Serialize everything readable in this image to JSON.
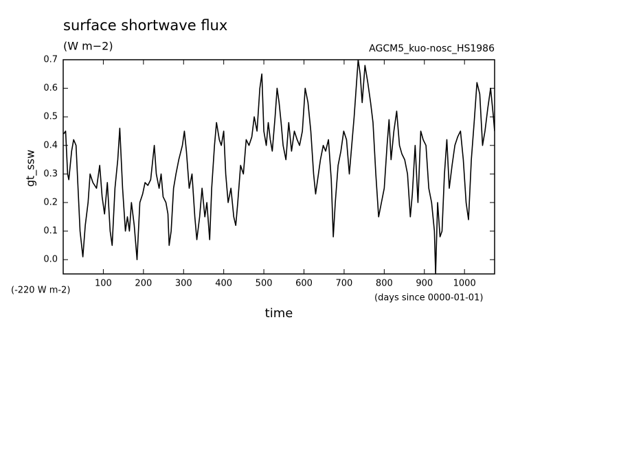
{
  "chart_data": {
    "type": "line",
    "title": "surface shortwave flux",
    "subtitle": "(W m−2)",
    "annotation": "AGCM5_kuo-nosc_HS1986",
    "offset_note": "(-220 W m-2)",
    "x_units": "(days since 0000-01-01)",
    "x_label": "time",
    "y_label": "gt_ssw",
    "xlim": [
      0,
      1075
    ],
    "xticks": [
      100,
      200,
      300,
      400,
      500,
      600,
      700,
      800,
      900,
      1000
    ],
    "ylim": [
      -0.05,
      0.7
    ],
    "yticks": [
      {
        "value": 0,
        "label": "0.0"
      },
      0.1,
      0.2,
      0.3,
      0.4,
      0.5,
      0.6,
      0.7
    ],
    "grid": false,
    "color": "#000000",
    "x": [
      1,
      6,
      11,
      14,
      21,
      26,
      32,
      37,
      42,
      49,
      55,
      62,
      67,
      74,
      83,
      91,
      97,
      103,
      110,
      117,
      122,
      129,
      136,
      141,
      148,
      155,
      160,
      165,
      170,
      177,
      184,
      191,
      198,
      204,
      211,
      218,
      227,
      232,
      239,
      244,
      249,
      256,
      261,
      264,
      269,
      275,
      281,
      288,
      297,
      302,
      307,
      314,
      321,
      328,
      333,
      340,
      346,
      353,
      358,
      365,
      370,
      377,
      382,
      389,
      394,
      400,
      405,
      411,
      418,
      425,
      430,
      435,
      442,
      449,
      456,
      463,
      470,
      476,
      483,
      490,
      495,
      500,
      506,
      511,
      516,
      521,
      528,
      533,
      538,
      543,
      548,
      555,
      562,
      569,
      576,
      583,
      589,
      596,
      603,
      610,
      617,
      624,
      629,
      634,
      641,
      648,
      654,
      661,
      668,
      673,
      678,
      685,
      692,
      699,
      706,
      713,
      719,
      725,
      730,
      735,
      740,
      745,
      752,
      759,
      766,
      772,
      779,
      786,
      793,
      800,
      807,
      812,
      817,
      824,
      831,
      838,
      844,
      851,
      858,
      865,
      870,
      877,
      884,
      891,
      897,
      904,
      911,
      918,
      925,
      928,
      933,
      939,
      944,
      950,
      956,
      962,
      969,
      976,
      983,
      990,
      997,
      1004,
      1010,
      1017,
      1024,
      1031,
      1038,
      1045,
      1051,
      1058,
      1065,
      1072,
      1075
    ],
    "values": [
      0.44,
      0.45,
      0.3,
      0.28,
      0.38,
      0.42,
      0.4,
      0.25,
      0.1,
      0.01,
      0.12,
      0.2,
      0.3,
      0.27,
      0.25,
      0.33,
      0.22,
      0.16,
      0.27,
      0.1,
      0.05,
      0.25,
      0.35,
      0.46,
      0.25,
      0.1,
      0.15,
      0.1,
      0.2,
      0.12,
      0.0,
      0.2,
      0.23,
      0.27,
      0.26,
      0.28,
      0.4,
      0.3,
      0.25,
      0.3,
      0.22,
      0.2,
      0.16,
      0.05,
      0.1,
      0.25,
      0.3,
      0.35,
      0.4,
      0.45,
      0.38,
      0.25,
      0.3,
      0.15,
      0.07,
      0.15,
      0.25,
      0.15,
      0.2,
      0.07,
      0.25,
      0.4,
      0.48,
      0.42,
      0.4,
      0.45,
      0.3,
      0.2,
      0.25,
      0.15,
      0.12,
      0.2,
      0.33,
      0.3,
      0.42,
      0.4,
      0.43,
      0.5,
      0.45,
      0.6,
      0.65,
      0.45,
      0.4,
      0.48,
      0.42,
      0.38,
      0.5,
      0.6,
      0.55,
      0.48,
      0.4,
      0.35,
      0.48,
      0.38,
      0.45,
      0.42,
      0.4,
      0.45,
      0.6,
      0.55,
      0.45,
      0.3,
      0.23,
      0.28,
      0.35,
      0.4,
      0.38,
      0.42,
      0.28,
      0.08,
      0.2,
      0.33,
      0.38,
      0.45,
      0.42,
      0.3,
      0.4,
      0.5,
      0.6,
      0.7,
      0.65,
      0.55,
      0.68,
      0.62,
      0.55,
      0.48,
      0.3,
      0.15,
      0.2,
      0.25,
      0.4,
      0.49,
      0.35,
      0.45,
      0.52,
      0.4,
      0.37,
      0.35,
      0.3,
      0.15,
      0.23,
      0.4,
      0.2,
      0.45,
      0.42,
      0.4,
      0.25,
      0.2,
      0.1,
      -0.05,
      0.2,
      0.08,
      0.1,
      0.3,
      0.42,
      0.25,
      0.33,
      0.4,
      0.43,
      0.45,
      0.35,
      0.2,
      0.14,
      0.35,
      0.48,
      0.62,
      0.58,
      0.4,
      0.45,
      0.53,
      0.6,
      0.5,
      0.45
    ]
  }
}
